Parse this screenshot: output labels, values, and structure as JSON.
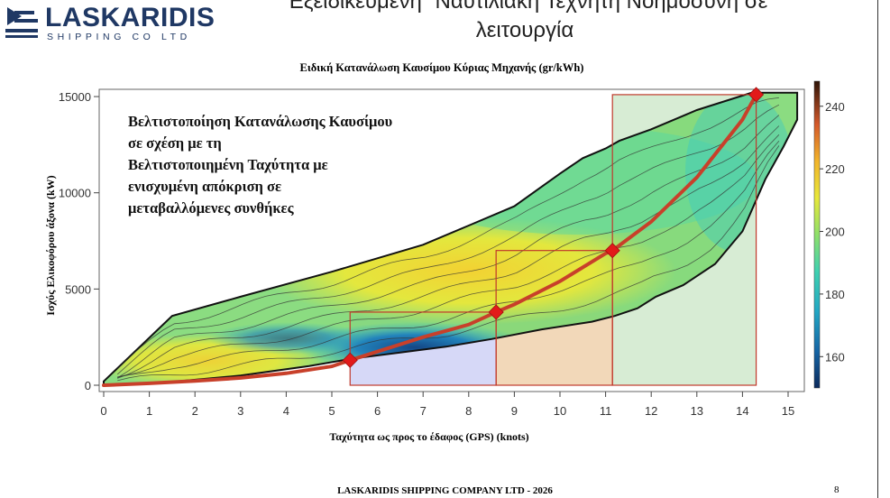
{
  "header": {
    "logo_name": "LASKARIDIS",
    "logo_sub": "SHIPPING CO LTD",
    "title": "“Εξειδικευμένη” Ναυτιλιακή Τεχνητή Νοημοσύνη σε λειτουργία"
  },
  "footer": {
    "company": "LASKARIDIS SHIPPING COMPANY LTD - 2026",
    "page": "8"
  },
  "colors": {
    "brand": "#1f3864",
    "curve": "#c8402a",
    "marker": "#e21a1a",
    "box_edge": "#c0392b"
  },
  "chart_data": {
    "type": "heatmap",
    "title": "Ειδική Κατανάλωση Καυσίμου Κύριας Μηχανής (gr/kWh)",
    "xlabel": "Ταχύτητα ως προς το έδαφος (GPS) (knots)",
    "ylabel": "Ισχύς Ελικοφόρου άξονα (kW)",
    "xlim": [
      0,
      15.3
    ],
    "ylim": [
      0,
      15200
    ],
    "xticks": [
      "0",
      "1",
      "2",
      "3",
      "4",
      "5",
      "6",
      "7",
      "8",
      "9",
      "10",
      "11",
      "12",
      "13",
      "14",
      "15"
    ],
    "yticks": [
      "0",
      "5000",
      "10000",
      "15000"
    ],
    "colorbar": {
      "ticks": [
        "160",
        "180",
        "200",
        "220",
        "240"
      ],
      "range": [
        150,
        248
      ]
    },
    "annotation": "Βελτιστοποίηση Κατανάλωσης Καυσίμου σε σχέση με τη Βελτιστοποιημένη Ταχύτητα με ενισχυμένη απόκριση σε μεταβαλλόμενες συνθήκες",
    "optimal_curve": {
      "x": [
        0,
        1,
        2,
        3,
        4,
        5,
        5.4,
        6,
        7,
        8,
        8.6,
        9,
        10,
        11,
        11.15,
        12,
        13,
        14,
        14.3
      ],
      "y": [
        0,
        100,
        220,
        380,
        620,
        980,
        1300,
        1750,
        2500,
        3150,
        3800,
        4200,
        5400,
        6850,
        7000,
        8500,
        10800,
        13800,
        15100
      ]
    },
    "markers": {
      "x": [
        5.4,
        8.6,
        11.15,
        14.3
      ],
      "y": [
        1300,
        3800,
        7000,
        15100
      ]
    },
    "regions": [
      {
        "x0": 5.4,
        "x1": 8.6,
        "y_top": 3800,
        "color": "#b5b8f0"
      },
      {
        "x0": 8.6,
        "x1": 11.15,
        "y_top": 7000,
        "color": "#e8b880"
      },
      {
        "x0": 11.15,
        "x1": 14.3,
        "y_top": 15100,
        "color": "#b6dcb0"
      }
    ],
    "envelope": {
      "upper_x": [
        0,
        1.5,
        3,
        5,
        7,
        8,
        9,
        10,
        10.5,
        11,
        11.3,
        12,
        13,
        14.2,
        15
      ],
      "upper_y": [
        200,
        3600,
        4600,
        5900,
        7300,
        8300,
        9300,
        11000,
        11800,
        12300,
        12700,
        13300,
        14300,
        15200,
        15200
      ],
      "lower_x": [
        15.2,
        15.2,
        14.9,
        14.5,
        14,
        13.4,
        12.7,
        12.1,
        11.7,
        11.2,
        10.7,
        9.6,
        8.5,
        7.5,
        6.5,
        5.5,
        4.5,
        3,
        1.5,
        0.5,
        0
      ],
      "lower_y": [
        15200,
        13800,
        12400,
        10700,
        8000,
        6300,
        5200,
        4600,
        4000,
        3600,
        3300,
        2900,
        2400,
        2000,
        1700,
        1400,
        1000,
        500,
        180,
        40,
        0
      ]
    }
  }
}
